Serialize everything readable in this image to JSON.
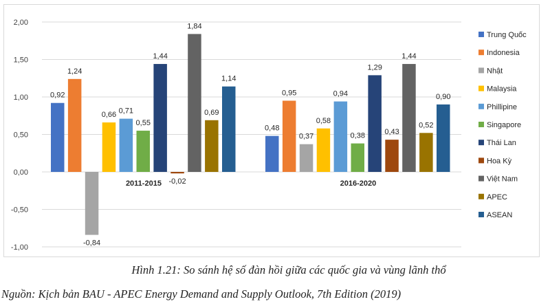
{
  "chart_data": {
    "type": "bar",
    "title": "",
    "xlabel": "",
    "ylabel": "",
    "ylim": [
      -1.0,
      2.0
    ],
    "yticks": [
      "2,00",
      "1,50",
      "1,00",
      "0,50",
      "0,00",
      "-0,50",
      "-1,00"
    ],
    "ytick_values": [
      2.0,
      1.5,
      1.0,
      0.5,
      0.0,
      -0.5,
      -1.0
    ],
    "grid": true,
    "legend_position": "right",
    "categories": [
      "2011-2015",
      "2016-2020"
    ],
    "series": [
      {
        "name": "Trung Quốc",
        "color": "#4472C4",
        "values": [
          0.92,
          0.48
        ],
        "labels": [
          "0,92",
          "0,48"
        ]
      },
      {
        "name": "Indonesia",
        "color": "#ED7D31",
        "values": [
          1.24,
          0.95
        ],
        "labels": [
          "1,24",
          "0,95"
        ]
      },
      {
        "name": "Nhật",
        "color": "#A5A5A5",
        "values": [
          -0.84,
          0.37
        ],
        "labels": [
          "-0,84",
          "0,37"
        ]
      },
      {
        "name": "Malaysia",
        "color": "#FFC000",
        "values": [
          0.66,
          0.58
        ],
        "labels": [
          "0,66",
          "0,58"
        ]
      },
      {
        "name": "Phillipine",
        "color": "#5B9BD5",
        "values": [
          0.71,
          0.94
        ],
        "labels": [
          "0,71",
          "0,94"
        ]
      },
      {
        "name": "Singapore",
        "color": "#70AD47",
        "values": [
          0.55,
          0.38
        ],
        "labels": [
          "0,55",
          "0,38"
        ]
      },
      {
        "name": "Thái Lan",
        "color": "#264478",
        "values": [
          1.44,
          1.29
        ],
        "labels": [
          "1,44",
          "1,29"
        ]
      },
      {
        "name": "Hoa Kỳ",
        "color": "#9E480E",
        "values": [
          -0.02,
          0.43
        ],
        "labels": [
          "-0,02",
          "0,43"
        ]
      },
      {
        "name": "Việt Nam",
        "color": "#636363",
        "values": [
          1.84,
          1.44
        ],
        "labels": [
          "1,84",
          "1,44"
        ]
      },
      {
        "name": "APEC",
        "color": "#997300",
        "values": [
          0.69,
          0.52
        ],
        "labels": [
          "0,69",
          "0,52"
        ]
      },
      {
        "name": "ASEAN",
        "color": "#255E91",
        "values": [
          1.14,
          0.9
        ],
        "labels": [
          "1,14",
          "0,90"
        ]
      }
    ]
  },
  "caption": {
    "title": "Hình 1.21: So sánh hệ số đàn hồi giữa các quốc gia và vùng lãnh thổ",
    "source": "Nguồn: Kịch bản BAU - APEC Energy Demand and Supply Outlook, 7th Edition (2019)"
  }
}
